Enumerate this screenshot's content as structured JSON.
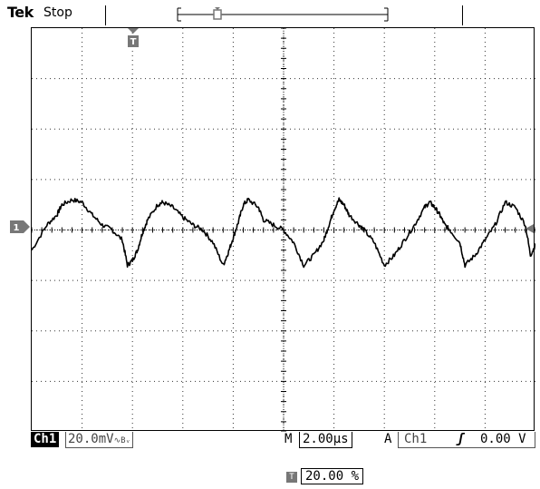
{
  "header": {
    "brand": "Tek",
    "run_state": "Stop"
  },
  "markers": {
    "channel_marker": "1",
    "trigger_marker": "T"
  },
  "status": {
    "channel_tag": "Ch1",
    "channel_scale": "20.0mV",
    "channel_bw_symbol": "∿Bᵥ",
    "timebase_label": "M",
    "timebase": "2.00µs",
    "trigger_mode": "A",
    "trigger_source": "Ch1",
    "trigger_slope": "ʃ",
    "trigger_level": "0.00 V"
  },
  "trigger_position": {
    "icon": "T",
    "value": "20.00 %"
  },
  "colors": {
    "trace": "#000000",
    "grid": "#000000",
    "marker": "#777777"
  },
  "chart_data": {
    "type": "line",
    "xlabel": "",
    "ylabel": "",
    "divisions": {
      "x": 10,
      "y": 8
    },
    "xlim_div": [
      0,
      10
    ],
    "ylim_div": [
      -4,
      4
    ],
    "x": [
      0.0,
      0.3,
      0.5,
      0.6,
      0.8,
      1.0,
      1.2,
      1.4,
      1.6,
      1.8,
      1.9,
      2.0,
      2.1,
      2.2,
      2.3,
      2.5,
      2.6,
      2.8,
      3.0,
      3.2,
      3.4,
      3.6,
      3.8,
      3.9,
      4.0,
      4.1,
      4.2,
      4.3,
      4.5,
      4.6,
      4.8,
      5.0,
      5.2,
      5.4,
      5.6,
      5.8,
      5.9,
      6.0,
      6.1,
      6.2,
      6.3,
      6.5,
      6.6,
      6.8,
      7.0,
      7.2,
      7.4,
      7.6,
      7.8,
      7.9,
      8.0,
      8.1,
      8.2,
      8.3,
      8.5,
      8.6,
      8.8,
      9.0,
      9.2,
      9.4,
      9.6,
      9.8,
      9.9,
      10.0
    ],
    "y": [
      -0.4,
      0.1,
      0.3,
      0.5,
      0.6,
      0.55,
      0.3,
      0.1,
      0.0,
      -0.2,
      -0.7,
      -0.6,
      -0.4,
      -0.05,
      0.2,
      0.5,
      0.55,
      0.45,
      0.25,
      0.1,
      0.0,
      -0.25,
      -0.7,
      -0.45,
      -0.15,
      0.15,
      0.5,
      0.6,
      0.45,
      0.2,
      0.1,
      0.0,
      -0.25,
      -0.7,
      -0.5,
      -0.2,
      0.1,
      0.4,
      0.6,
      0.5,
      0.3,
      0.1,
      0.0,
      -0.25,
      -0.7,
      -0.5,
      -0.2,
      0.1,
      0.45,
      0.55,
      0.45,
      0.3,
      0.1,
      0.0,
      -0.25,
      -0.7,
      -0.5,
      -0.2,
      0.1,
      0.55,
      0.45,
      0.1,
      -0.5,
      -0.3
    ]
  }
}
